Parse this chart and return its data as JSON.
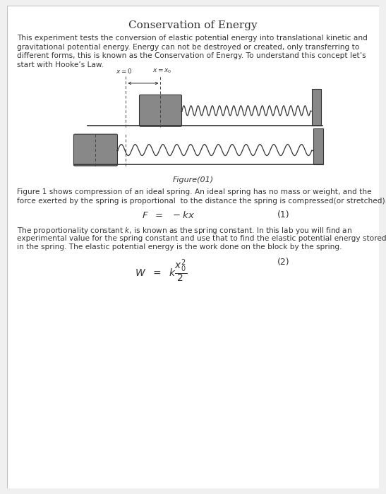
{
  "title": "Conservation of Energy",
  "title_fontsize": 11,
  "page_color": "#f0f0f0",
  "content_color": "#ffffff",
  "text_color": "#333333",
  "block_color": "#888888",
  "spring_color": "#222222",
  "wall_color": "#888888",
  "label_x0": "$x = 0$",
  "label_xx0": "$x = x_0$",
  "figure_caption": "Figure(01)",
  "lines_body": [
    "This experiment tests the conversion of elastic potential energy into translational kinetic and",
    "gravitational potential energy. Energy can not be destroyed or created, only transferring to",
    "different forms, this is known as the Conservation of Energy. To understand this concept let’s",
    "start with Hooke’s Law."
  ],
  "lines_fig1": [
    "Figure 1 shows compression of an ideal spring. An ideal spring has no mass or weight, and the",
    "force exerted by the spring is proportional  to the distance the spring is compressed(or stretched)."
  ],
  "lines_fig2": [
    "The proportionality constant $k$, is known as the spring constant. In this lab you will find an",
    "experimental value for the spring constant and use that to find the elastic potential energy stored",
    "in the spring. The elastic potential energy is the work done on the block by the spring."
  ],
  "eq1_label": "$F\\ \\ =\\ \\ -kx$",
  "eq1_num": "(1)",
  "eq2_label": "$W\\ \\ =\\ \\ k\\dfrac{x_0^2}{2}$",
  "eq2_num": "(2)"
}
